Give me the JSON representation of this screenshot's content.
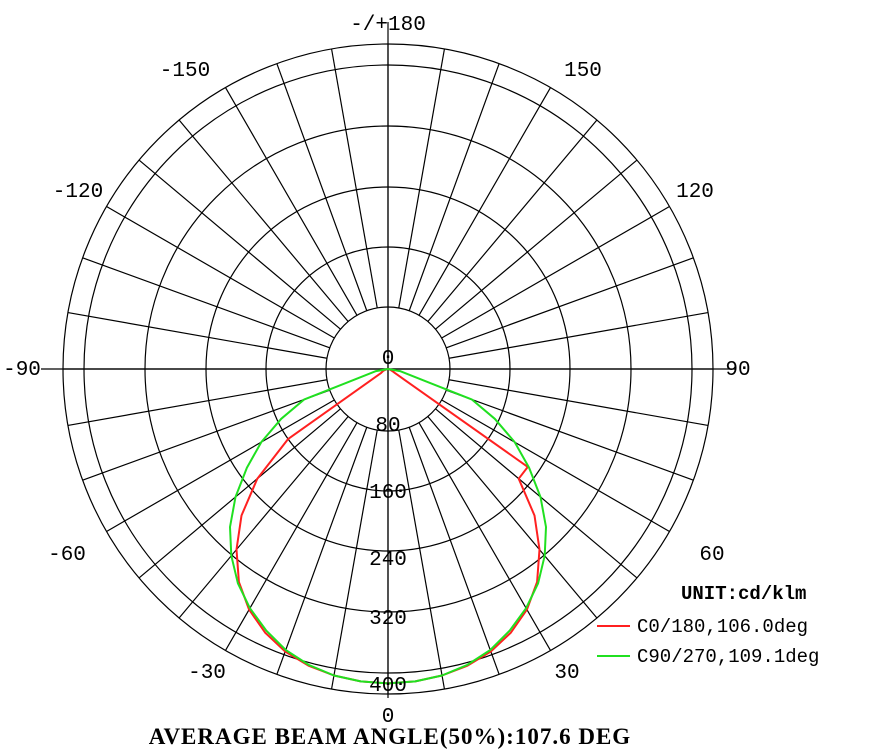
{
  "chart_data": {
    "type": "polar",
    "title": "",
    "unit_label": "UNIT:cd/klm",
    "footer": "AVERAGE BEAM ANGLE(50%):107.6 DEG",
    "radial_max": 400,
    "radial_ticks": [
      0,
      80,
      160,
      240,
      320,
      400
    ],
    "radial_tick_labels": [
      "0",
      "80",
      "160",
      "240",
      "320",
      "400"
    ],
    "angle_step_deg": 10,
    "angle_labels": [
      {
        "angle": 0,
        "text": "0"
      },
      {
        "angle": 30,
        "text": "30"
      },
      {
        "angle": 60,
        "text": "60"
      },
      {
        "angle": 90,
        "text": "90"
      },
      {
        "angle": 120,
        "text": "120"
      },
      {
        "angle": 150,
        "text": "150"
      },
      {
        "angle": 180,
        "text": "-/+180"
      },
      {
        "angle": -150,
        "text": "-150"
      },
      {
        "angle": -120,
        "text": "-120"
      },
      {
        "angle": -90,
        "text": "-90"
      },
      {
        "angle": -60,
        "text": "-60"
      },
      {
        "angle": -30,
        "text": "-30"
      }
    ],
    "legend_placement": "bottom-right",
    "series": [
      {
        "name": "C0/180,106.0deg",
        "color": "#ff2020",
        "angles": [
          -90,
          -80,
          -70,
          -60,
          -55,
          -50,
          -45,
          -40,
          -35,
          -30,
          -25,
          -20,
          -15,
          -10,
          -5,
          0,
          5,
          10,
          15,
          20,
          25,
          30,
          35,
          40,
          45,
          50,
          55,
          60,
          65,
          70,
          80,
          90
        ],
        "values": [
          0,
          2,
          6,
          10,
          150,
          210,
          255,
          290,
          320,
          342,
          358,
          370,
          378,
          383,
          386,
          387,
          386,
          383,
          378,
          370,
          358,
          342,
          320,
          290,
          255,
          210,
          210,
          10,
          6,
          3,
          1,
          0
        ]
      },
      {
        "name": "C90/270,109.1deg",
        "color": "#20e020",
        "angles": [
          -90,
          -80,
          -70,
          -65,
          -60,
          -55,
          -50,
          -45,
          -40,
          -35,
          -30,
          -25,
          -20,
          -15,
          -10,
          -5,
          0,
          5,
          10,
          15,
          20,
          25,
          30,
          35,
          40,
          45,
          50,
          55,
          60,
          65,
          70,
          80,
          90
        ],
        "values": [
          0,
          15,
          110,
          145,
          180,
          212,
          245,
          275,
          300,
          322,
          340,
          355,
          368,
          377,
          383,
          386,
          387,
          386,
          383,
          377,
          368,
          355,
          340,
          322,
          300,
          275,
          245,
          212,
          180,
          145,
          110,
          15,
          0
        ]
      }
    ]
  }
}
